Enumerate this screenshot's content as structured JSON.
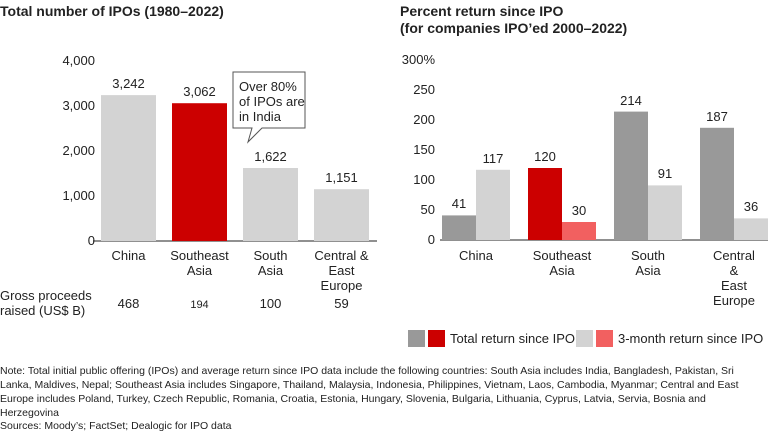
{
  "chart_data": [
    {
      "type": "bar",
      "title": "Total number of IPOs (1980–2022)",
      "categories": [
        "China",
        "Southeast\nAsia",
        "South\nAsia",
        "Central &\nEast\nEurope"
      ],
      "values": [
        3242,
        3062,
        1622,
        1151
      ],
      "value_labels": [
        "3,242",
        "3,062",
        "1,622",
        "1,151"
      ],
      "colors": [
        "#d3d3d3",
        "#cc0000",
        "#d3d3d3",
        "#d3d3d3"
      ],
      "ylim": [
        0,
        4000
      ],
      "yticks": [
        0,
        {
          "value": 1000,
          "label": "1,000"
        },
        {
          "value": 2000,
          "label": "2,000"
        },
        {
          "value": 3000,
          "label": "3,000"
        },
        {
          "value": 4000,
          "label": "4,000"
        }
      ],
      "annotation": "Over 80%\nof IPOs are\nin India",
      "gross_proceeds": {
        "label": "Gross proceeds\nraised (US$ B)",
        "values": [
          468,
          194,
          100,
          59
        ]
      }
    },
    {
      "type": "grouped_bar",
      "title": "Percent return since IPO\n(for companies IPO’ed 2000–2022)",
      "categories": [
        "China",
        "Southeast\nAsia",
        "South\nAsia",
        "Central &\nEast\nEurope"
      ],
      "series": [
        {
          "name": "Total return since IPO",
          "colors": [
            "#999999",
            "#cc0000",
            "#999999",
            "#999999"
          ],
          "values": [
            41,
            120,
            214,
            187
          ]
        },
        {
          "name": "3-month return since IPO",
          "colors": [
            "#d3d3d3",
            "#f26060",
            "#d3d3d3",
            "#d3d3d3"
          ],
          "values": [
            117,
            30,
            91,
            36
          ]
        }
      ],
      "ylim": [
        0,
        300
      ],
      "yticks": [
        0,
        50,
        100,
        150,
        200,
        250,
        {
          "value": 300,
          "label": "300%"
        }
      ]
    }
  ],
  "note": "Note: Total initial public offering (IPOs) and average return since IPO data include the following countries: South Asia includes India, Bangladesh, Pakistan, Sri Lanka, Maldives, Nepal; Southeast Asia includes Singapore, Thailand, Malaysia, Indonesia, Philippines, Vietnam, Laos, Cambodia, Myanmar; Central and East Europe includes Poland, Turkey, Czech Republic, Romania, Croatia, Estonia, Hungary, Slovenia, Bulgaria, Lithuania, Cyprus, Latvia, Servia, Bosnia and Herzegovina",
  "sources": "Sources: Moody’s; FactSet; Dealogic for IPO data"
}
